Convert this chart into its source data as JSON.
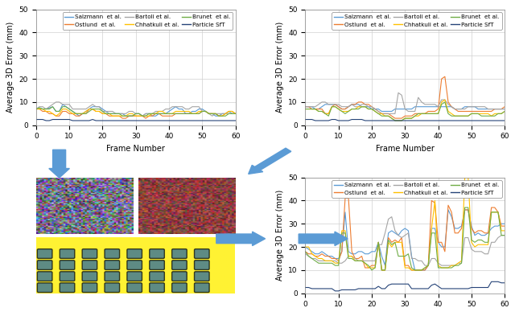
{
  "legend_labels": [
    "Salzmann  et al.",
    "Ostlund  et al.",
    "Bartoli et al.",
    "Chhatkuli et al.",
    "Brunet  et al.",
    "Particle SfT"
  ],
  "legend_colors": [
    "#5b9bd5",
    "#ed7d31",
    "#a5a5a5",
    "#ffc000",
    "#70ad47",
    "#264478"
  ],
  "ylabel": "Average 3D Error (mm)",
  "xlabel": "Frame Number",
  "ylim": [
    0,
    50
  ],
  "xlim": [
    0,
    60
  ],
  "yticks": [
    0,
    10,
    20,
    30,
    40,
    50
  ],
  "xticks": [
    0,
    10,
    20,
    30,
    40,
    50,
    60
  ],
  "chart1_salzmann": [
    7,
    7.5,
    7,
    7,
    7.5,
    8,
    6,
    6,
    9,
    8,
    7,
    6,
    5,
    4,
    5,
    6,
    7,
    8,
    8,
    8,
    7,
    6,
    5,
    5,
    5,
    5,
    5,
    4,
    4,
    4,
    5,
    5,
    4,
    5,
    5,
    4,
    4,
    5,
    5,
    5,
    6,
    7,
    8,
    7,
    7,
    5,
    5,
    6,
    6,
    7,
    7,
    6,
    5,
    5,
    4,
    4,
    5,
    5,
    6,
    5,
    5
  ],
  "chart1_ostlund": [
    7,
    7,
    6,
    6,
    5,
    5,
    4,
    4,
    6,
    6,
    5,
    5,
    4,
    4,
    5,
    5,
    7,
    7,
    6,
    6,
    5,
    5,
    4,
    4,
    4,
    4,
    3,
    3,
    4,
    4,
    4,
    4,
    4,
    3,
    4,
    4,
    5,
    5,
    4,
    4,
    4,
    4,
    5,
    5,
    5,
    5,
    5,
    5,
    5,
    5,
    6,
    6,
    5,
    5,
    5,
    4,
    4,
    5,
    6,
    6,
    5
  ],
  "chart1_bartoli": [
    7,
    8,
    8,
    7,
    8,
    9,
    10,
    10,
    9,
    9,
    9,
    7,
    7,
    7,
    7,
    7,
    8,
    9,
    8,
    8,
    6,
    6,
    6,
    6,
    5,
    5,
    5,
    5,
    6,
    6,
    5,
    5,
    4,
    5,
    5,
    5,
    6,
    6,
    6,
    7,
    7,
    8,
    8,
    8,
    8,
    7,
    7,
    8,
    8,
    8,
    6,
    6,
    5,
    4,
    5,
    5,
    5,
    5,
    5,
    5,
    5
  ],
  "chart1_chhatkuli": [
    7,
    7,
    7,
    6,
    6,
    5,
    4,
    5,
    7,
    7,
    6,
    5,
    5,
    5,
    5,
    6,
    7,
    7,
    6,
    6,
    5,
    5,
    5,
    4,
    4,
    4,
    4,
    4,
    5,
    5,
    4,
    4,
    4,
    4,
    4,
    5,
    5,
    6,
    6,
    5,
    5,
    5,
    6,
    6,
    6,
    6,
    6,
    5,
    5,
    6,
    6,
    6,
    5,
    5,
    5,
    4,
    4,
    5,
    6,
    6,
    5
  ],
  "chart1_brunet": [
    7,
    7.5,
    7,
    7,
    7,
    8,
    6,
    6,
    8,
    8,
    7,
    6,
    5,
    5,
    5,
    5,
    6,
    7,
    7,
    7,
    6,
    5,
    5,
    5,
    5,
    5,
    4,
    4,
    4,
    4,
    5,
    5,
    4,
    4,
    5,
    5,
    5,
    5,
    5,
    5,
    5,
    5,
    5,
    5,
    5,
    5,
    5,
    5,
    5,
    5,
    6,
    6,
    5,
    5,
    5,
    4,
    4,
    4,
    5,
    5,
    5
  ],
  "chart1_particle": [
    2.5,
    2.5,
    2.5,
    2,
    2,
    2.5,
    2.5,
    2.5,
    2.5,
    2.5,
    2.5,
    2,
    2,
    2,
    2,
    2,
    2,
    2.5,
    2,
    2,
    2,
    2,
    2,
    2,
    2,
    2,
    2,
    2,
    2,
    2,
    2,
    2,
    2,
    2,
    2,
    2,
    2,
    2,
    2,
    2,
    2,
    2,
    2,
    2,
    2,
    2,
    2,
    2,
    2,
    2,
    2,
    2,
    2,
    2,
    2,
    2,
    2,
    2,
    2,
    2,
    2
  ],
  "chart2_salzmann": [
    8,
    8,
    8,
    7,
    7,
    8,
    9,
    9,
    9,
    9,
    8,
    7,
    7,
    8,
    9,
    9,
    9,
    8,
    8,
    8,
    7,
    7,
    7,
    6,
    6,
    6,
    6,
    7,
    7,
    7,
    7,
    7,
    7,
    8,
    8,
    8,
    8,
    8,
    8,
    8,
    8,
    8,
    8,
    8,
    8,
    7,
    7,
    7,
    8,
    8,
    8,
    8,
    7,
    7,
    7,
    7,
    7,
    7,
    7,
    7,
    7
  ],
  "chart2_ostlund": [
    8,
    8,
    7,
    7,
    7,
    7,
    5,
    5,
    8,
    9,
    8,
    7,
    7,
    8,
    9,
    9,
    10,
    10,
    9,
    9,
    8,
    7,
    6,
    5,
    5,
    5,
    4,
    3,
    3,
    3,
    4,
    4,
    4,
    5,
    5,
    5,
    5,
    6,
    6,
    6,
    7,
    20,
    21,
    10,
    8,
    7,
    6,
    6,
    6,
    6,
    6,
    6,
    6,
    6,
    6,
    6,
    6,
    7,
    7,
    7,
    8
  ],
  "chart2_bartoli": [
    8,
    8,
    8,
    8,
    9,
    10,
    10,
    9,
    9,
    9,
    9,
    8,
    8,
    8,
    9,
    8,
    8,
    9,
    9,
    8,
    8,
    7,
    6,
    5,
    5,
    5,
    5,
    5,
    14,
    13,
    7,
    6,
    6,
    6,
    12,
    10,
    9,
    9,
    9,
    9,
    8,
    11,
    11,
    9,
    8,
    7,
    7,
    7,
    7,
    8,
    8,
    8,
    8,
    8,
    8,
    7,
    7,
    7,
    7,
    7,
    7
  ],
  "chart2_chhatkuli": [
    7,
    7,
    7,
    7,
    6,
    6,
    5,
    5,
    8,
    8,
    7,
    6,
    6,
    6,
    7,
    7,
    8,
    8,
    8,
    7,
    7,
    6,
    5,
    5,
    4,
    4,
    3,
    2,
    2,
    2,
    3,
    3,
    3,
    4,
    4,
    5,
    5,
    5,
    5,
    5,
    5,
    10,
    11,
    6,
    5,
    4,
    4,
    4,
    4,
    4,
    5,
    5,
    5,
    5,
    5,
    5,
    4,
    5,
    5,
    5,
    6
  ],
  "chart2_brunet": [
    7,
    7,
    7,
    7,
    6,
    6,
    5,
    4,
    8,
    8,
    7,
    6,
    5,
    6,
    7,
    7,
    7,
    8,
    8,
    7,
    7,
    6,
    5,
    4,
    4,
    4,
    3,
    2,
    2,
    2,
    3,
    3,
    3,
    4,
    5,
    5,
    5,
    5,
    5,
    5,
    5,
    9,
    10,
    5,
    4,
    4,
    4,
    4,
    4,
    4,
    5,
    5,
    5,
    4,
    4,
    4,
    4,
    4,
    5,
    5,
    6
  ],
  "chart2_particle": [
    2.5,
    2.5,
    2.5,
    2,
    2,
    2,
    2,
    2,
    2.5,
    2.5,
    2,
    2,
    2,
    2,
    2.5,
    2.5,
    2.5,
    2.5,
    2,
    2,
    2,
    2,
    2,
    2,
    2,
    2,
    2,
    2,
    2,
    2,
    2,
    2,
    2,
    2,
    2,
    2,
    2,
    2,
    2,
    2,
    2,
    2,
    2,
    2,
    2,
    2,
    2,
    2,
    2,
    2,
    2,
    2,
    2,
    2,
    2,
    2,
    2,
    2,
    2,
    2,
    2
  ],
  "chart3_salzmann": [
    20,
    19,
    18,
    17,
    17,
    18,
    17,
    16,
    16,
    15,
    15,
    18,
    35,
    18,
    17,
    17,
    18,
    18,
    17,
    17,
    18,
    18,
    22,
    16,
    12,
    26,
    27,
    26,
    25,
    27,
    28,
    27,
    16,
    10,
    10,
    10,
    10,
    12,
    28,
    28,
    22,
    20,
    20,
    36,
    33,
    28,
    28,
    29,
    36,
    36,
    29,
    25,
    26,
    25,
    25,
    26,
    28,
    29,
    29,
    30,
    30
  ],
  "chart3_ostlund": [
    18,
    17,
    17,
    16,
    16,
    17,
    16,
    16,
    15,
    15,
    14,
    18,
    41,
    41,
    18,
    15,
    15,
    16,
    11,
    11,
    12,
    12,
    22,
    10,
    10,
    24,
    22,
    23,
    22,
    24,
    12,
    12,
    10,
    10,
    10,
    10,
    10,
    12,
    40,
    39,
    22,
    22,
    18,
    38,
    35,
    26,
    26,
    28,
    36,
    36,
    28,
    26,
    27,
    27,
    26,
    26,
    37,
    37,
    35,
    29,
    29
  ],
  "chart3_bartoli": [
    17,
    16,
    15,
    15,
    14,
    14,
    14,
    14,
    14,
    14,
    13,
    13,
    14,
    16,
    16,
    15,
    14,
    14,
    14,
    14,
    14,
    14,
    21,
    21,
    26,
    32,
    33,
    27,
    25,
    24,
    25,
    26,
    15,
    15,
    14,
    14,
    12,
    12,
    15,
    15,
    13,
    12,
    12,
    12,
    12,
    12,
    13,
    13,
    24,
    24,
    19,
    18,
    18,
    18,
    17,
    17,
    22,
    22,
    24,
    25,
    25
  ],
  "chart3_chhatkuli": [
    20,
    20,
    17,
    16,
    15,
    15,
    14,
    14,
    14,
    13,
    13,
    27,
    27,
    16,
    16,
    14,
    14,
    14,
    13,
    11,
    11,
    11,
    22,
    10,
    10,
    22,
    20,
    22,
    22,
    22,
    11,
    11,
    10,
    10,
    10,
    10,
    11,
    12,
    28,
    40,
    12,
    11,
    11,
    11,
    12,
    12,
    13,
    14,
    50,
    50,
    22,
    20,
    21,
    21,
    21,
    21,
    35,
    35,
    35,
    27,
    27
  ],
  "chart3_brunet": [
    18,
    16,
    15,
    14,
    13,
    13,
    13,
    13,
    13,
    12,
    12,
    26,
    26,
    15,
    15,
    14,
    14,
    14,
    13,
    12,
    10,
    11,
    22,
    10,
    10,
    23,
    21,
    22,
    16,
    16,
    16,
    17,
    11,
    10,
    10,
    10,
    11,
    12,
    26,
    26,
    11,
    11,
    11,
    11,
    11,
    12,
    12,
    13,
    37,
    37,
    23,
    22,
    23,
    23,
    22,
    22,
    35,
    35,
    35,
    25,
    25
  ],
  "chart3_particle": [
    2.5,
    2.5,
    2,
    2,
    2,
    2,
    2,
    2,
    2,
    1,
    1,
    1.5,
    1.5,
    1.5,
    1.5,
    1.5,
    2,
    2,
    2,
    2,
    2,
    2,
    3,
    2,
    2,
    3.5,
    4,
    4,
    4,
    4,
    4,
    4,
    2,
    2,
    2,
    2,
    2,
    2,
    3.5,
    4,
    3,
    2,
    2,
    2,
    2,
    2,
    2,
    2,
    2,
    2,
    2.5,
    2.5,
    2.5,
    2.5,
    2.5,
    2.5,
    5,
    5,
    5,
    4.5,
    4.5
  ],
  "background_color": "#ffffff",
  "grid_color": "#d0d0d0"
}
